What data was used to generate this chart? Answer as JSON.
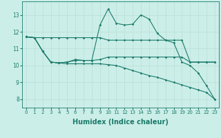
{
  "background_color": "#cceee8",
  "grid_color": "#b8ddd8",
  "line_color": "#1a7a6a",
  "xlabel": "Humidex (Indice chaleur)",
  "xlabel_fontsize": 7,
  "ylim": [
    7.5,
    13.8
  ],
  "xlim": [
    -0.5,
    23.5
  ],
  "yticks": [
    8,
    9,
    10,
    11,
    12,
    13
  ],
  "xticks": [
    0,
    1,
    2,
    3,
    4,
    5,
    6,
    7,
    8,
    9,
    10,
    11,
    12,
    13,
    14,
    15,
    16,
    17,
    18,
    19,
    20,
    21,
    22,
    23
  ],
  "tick_fontsize": 5.0,
  "ytick_fontsize": 5.5,
  "line1_x": [
    0,
    1,
    2,
    3,
    4,
    5,
    6,
    7,
    8,
    9,
    10,
    11,
    12,
    13,
    14,
    15,
    16,
    17,
    18,
    19,
    20,
    21,
    22,
    23
  ],
  "line1_y": [
    11.7,
    11.65,
    11.65,
    11.65,
    11.65,
    11.65,
    11.65,
    11.65,
    11.65,
    11.65,
    11.5,
    11.5,
    11.5,
    11.5,
    11.5,
    11.5,
    11.5,
    11.5,
    11.5,
    11.5,
    10.2,
    10.2,
    10.2,
    10.2
  ],
  "line2_x": [
    0,
    1,
    2,
    3,
    4,
    5,
    6,
    7,
    8,
    9,
    10,
    11,
    12,
    13,
    14,
    15,
    16,
    17,
    18,
    19,
    20,
    21,
    22,
    23
  ],
  "line2_y": [
    11.7,
    11.65,
    10.85,
    10.2,
    10.15,
    10.2,
    10.3,
    10.3,
    10.3,
    10.35,
    10.5,
    10.5,
    10.5,
    10.5,
    10.5,
    10.5,
    10.5,
    10.5,
    10.5,
    10.5,
    10.2,
    10.2,
    10.2,
    10.2
  ],
  "line3_x": [
    0,
    1,
    2,
    3,
    4,
    5,
    6,
    7,
    8,
    9,
    10,
    11,
    12,
    13,
    14,
    15,
    16,
    17,
    18,
    19,
    20,
    21,
    22,
    23
  ],
  "line3_y": [
    11.7,
    11.65,
    10.85,
    10.2,
    10.15,
    10.2,
    10.35,
    10.3,
    10.3,
    12.4,
    13.35,
    12.5,
    12.4,
    12.45,
    13.0,
    12.75,
    11.9,
    11.5,
    11.35,
    10.2,
    10.0,
    9.55,
    8.8,
    8.0
  ],
  "line4_x": [
    0,
    1,
    2,
    3,
    4,
    5,
    6,
    7,
    8,
    9,
    10,
    11,
    12,
    13,
    14,
    15,
    16,
    17,
    18,
    19,
    20,
    21,
    22,
    23
  ],
  "line4_y": [
    11.7,
    11.65,
    10.85,
    10.2,
    10.15,
    10.1,
    10.1,
    10.1,
    10.1,
    10.1,
    10.05,
    10.0,
    9.85,
    9.7,
    9.55,
    9.4,
    9.3,
    9.15,
    9.0,
    8.85,
    8.7,
    8.55,
    8.4,
    8.0
  ]
}
